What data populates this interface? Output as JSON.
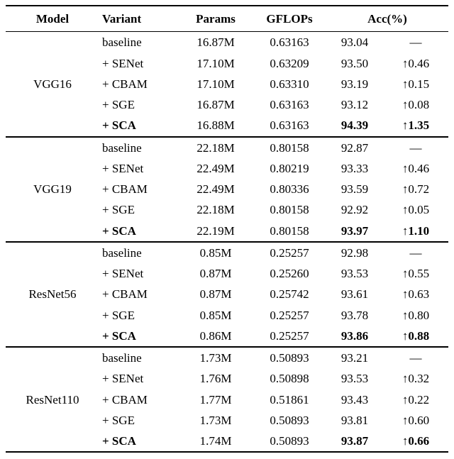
{
  "table": {
    "headers": [
      "Model",
      "Variant",
      "Params",
      "GFLOPs",
      "Acc(%)"
    ],
    "groups": [
      {
        "model": "VGG16",
        "rows": [
          {
            "variant": "baseline",
            "params": "16.87M",
            "gflops": "0.63163",
            "acc": "93.04",
            "delta": "—",
            "bold": false
          },
          {
            "variant": "+ SENet",
            "params": "17.10M",
            "gflops": "0.63209",
            "acc": "93.50",
            "delta": "↑0.46",
            "bold": false
          },
          {
            "variant": "+ CBAM",
            "params": "17.10M",
            "gflops": "0.63310",
            "acc": "93.19",
            "delta": "↑0.15",
            "bold": false
          },
          {
            "variant": "+ SGE",
            "params": "16.87M",
            "gflops": "0.63163",
            "acc": "93.12",
            "delta": "↑0.08",
            "bold": false
          },
          {
            "variant": "+ SCA",
            "params": "16.88M",
            "gflops": "0.63163",
            "acc": "94.39",
            "delta": "↑1.35",
            "bold": true
          }
        ]
      },
      {
        "model": "VGG19",
        "rows": [
          {
            "variant": "baseline",
            "params": "22.18M",
            "gflops": "0.80158",
            "acc": "92.87",
            "delta": "—",
            "bold": false
          },
          {
            "variant": "+ SENet",
            "params": "22.49M",
            "gflops": "0.80219",
            "acc": "93.33",
            "delta": "↑0.46",
            "bold": false
          },
          {
            "variant": "+ CBAM",
            "params": "22.49M",
            "gflops": "0.80336",
            "acc": "93.59",
            "delta": "↑0.72",
            "bold": false
          },
          {
            "variant": "+ SGE",
            "params": "22.18M",
            "gflops": "0.80158",
            "acc": "92.92",
            "delta": "↑0.05",
            "bold": false
          },
          {
            "variant": "+ SCA",
            "params": "22.19M",
            "gflops": "0.80158",
            "acc": "93.97",
            "delta": "↑1.10",
            "bold": true
          }
        ]
      },
      {
        "model": "ResNet56",
        "rows": [
          {
            "variant": "baseline",
            "params": "0.85M",
            "gflops": "0.25257",
            "acc": "92.98",
            "delta": "—",
            "bold": false
          },
          {
            "variant": "+ SENet",
            "params": "0.87M",
            "gflops": "0.25260",
            "acc": "93.53",
            "delta": "↑0.55",
            "bold": false
          },
          {
            "variant": "+ CBAM",
            "params": "0.87M",
            "gflops": "0.25742",
            "acc": "93.61",
            "delta": "↑0.63",
            "bold": false
          },
          {
            "variant": "+ SGE",
            "params": "0.85M",
            "gflops": "0.25257",
            "acc": "93.78",
            "delta": "↑0.80",
            "bold": false
          },
          {
            "variant": "+ SCA",
            "params": "0.86M",
            "gflops": "0.25257",
            "acc": "93.86",
            "delta": "↑0.88",
            "bold": true
          }
        ]
      },
      {
        "model": "ResNet110",
        "rows": [
          {
            "variant": "baseline",
            "params": "1.73M",
            "gflops": "0.50893",
            "acc": "93.21",
            "delta": "—",
            "bold": false
          },
          {
            "variant": "+ SENet",
            "params": "1.76M",
            "gflops": "0.50898",
            "acc": "93.53",
            "delta": "↑0.32",
            "bold": false
          },
          {
            "variant": "+ CBAM",
            "params": "1.77M",
            "gflops": "0.51861",
            "acc": "93.43",
            "delta": "↑0.22",
            "bold": false
          },
          {
            "variant": "+ SGE",
            "params": "1.73M",
            "gflops": "0.50893",
            "acc": "93.81",
            "delta": "↑0.60",
            "bold": false
          },
          {
            "variant": "+ SCA",
            "params": "1.74M",
            "gflops": "0.50893",
            "acc": "93.87",
            "delta": "↑0.66",
            "bold": true
          }
        ]
      }
    ]
  }
}
